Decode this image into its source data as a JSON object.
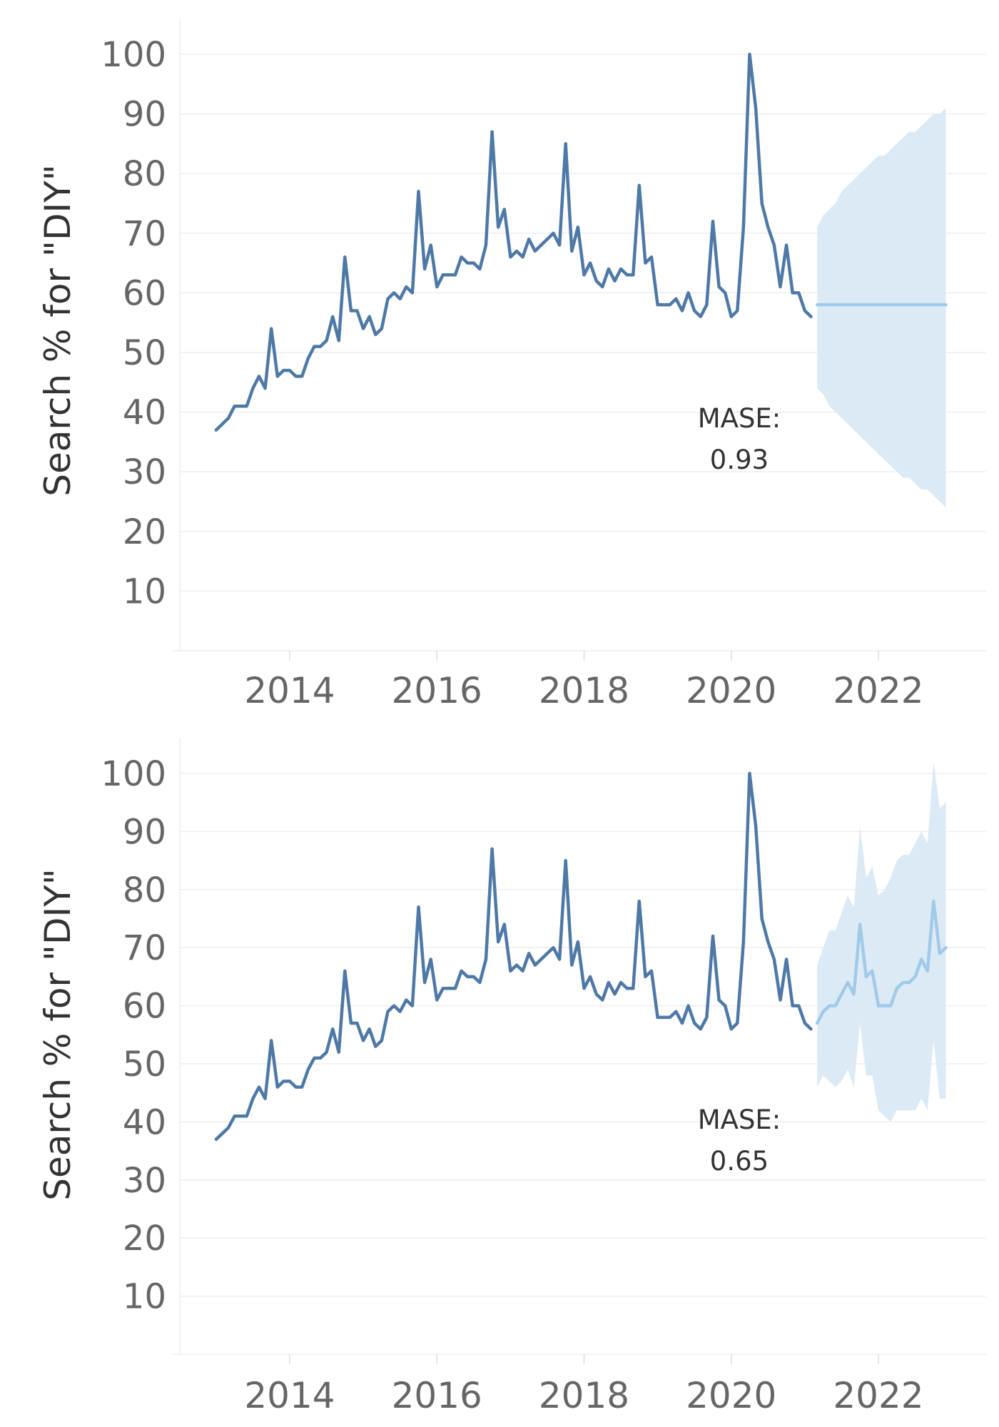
{
  "colors": {
    "history": "#4e79a7",
    "forecast": "#a0cbe8",
    "band": "#dceaf5",
    "grid": "#eeeeee",
    "tick_text": "#666666",
    "label_text": "#333333"
  },
  "history_values": [
    37,
    38,
    39,
    41,
    41,
    41,
    44,
    46,
    44,
    54,
    46,
    47,
    47,
    46,
    46,
    49,
    51,
    51,
    52,
    56,
    52,
    66,
    57,
    57,
    54,
    56,
    53,
    54,
    59,
    60,
    59,
    61,
    60,
    77,
    64,
    68,
    61,
    63,
    63,
    63,
    66,
    65,
    65,
    64,
    68,
    87,
    71,
    74,
    66,
    67,
    66,
    69,
    67,
    68,
    69,
    70,
    68,
    85,
    67,
    71,
    63,
    65,
    62,
    61,
    64,
    62,
    64,
    63,
    63,
    78,
    65,
    66,
    58,
    58,
    58,
    59,
    57,
    60,
    57,
    56,
    58,
    72,
    61,
    60,
    56,
    57,
    71,
    100,
    91,
    75,
    71,
    68,
    61,
    68,
    60,
    60,
    57,
    56
  ],
  "chart_data": [
    {
      "type": "line",
      "title": "",
      "xlabel": "",
      "ylabel": "Search % for \"DIY\"",
      "ylim": [
        0,
        100
      ],
      "xlim": [
        "2012-01",
        "2023-01"
      ],
      "yticks": [
        10,
        20,
        30,
        40,
        50,
        60,
        70,
        80,
        90,
        100
      ],
      "xticks": [
        "2014",
        "2016",
        "2018",
        "2020",
        "2022"
      ],
      "grid": "horizontal",
      "history_start": "2013-01",
      "forecast_start": "2021-03",
      "forecast_values": [
        58,
        58,
        58,
        58,
        58,
        58,
        58,
        58,
        58,
        58,
        58,
        58,
        58,
        58,
        58,
        58,
        58,
        58,
        58,
        58,
        58,
        58
      ],
      "forecast_upper": [
        71,
        73,
        74,
        75,
        77,
        78,
        79,
        80,
        81,
        82,
        83,
        83,
        84,
        85,
        86,
        87,
        87,
        88,
        89,
        90,
        90,
        91
      ],
      "forecast_lower": [
        44,
        43,
        41,
        40,
        39,
        38,
        37,
        36,
        35,
        34,
        33,
        32,
        31,
        30,
        29,
        29,
        28,
        27,
        27,
        26,
        25,
        24
      ],
      "annotation": {
        "label": "MASE:",
        "value": "0.93"
      }
    },
    {
      "type": "line",
      "title": "",
      "xlabel": "",
      "ylabel": "Search % for \"DIY\"",
      "ylim": [
        0,
        100
      ],
      "xlim": [
        "2012-01",
        "2023-01"
      ],
      "yticks": [
        10,
        20,
        30,
        40,
        50,
        60,
        70,
        80,
        90,
        100
      ],
      "xticks": [
        "2014",
        "2016",
        "2018",
        "2020",
        "2022"
      ],
      "grid": "horizontal",
      "history_start": "2013-01",
      "forecast_start": "2021-03",
      "forecast_values": [
        57,
        59,
        60,
        60,
        62,
        64,
        62,
        74,
        65,
        66,
        60,
        60,
        60,
        63,
        64,
        64,
        65,
        68,
        66,
        78,
        69,
        70
      ],
      "forecast_upper": [
        67,
        70,
        73,
        73,
        76,
        79,
        77,
        91,
        82,
        84,
        79,
        80,
        82,
        85,
        86,
        86,
        88,
        90,
        88,
        102,
        94,
        95
      ],
      "forecast_lower": [
        46,
        48,
        47,
        46,
        47,
        49,
        46,
        57,
        48,
        48,
        42,
        41,
        40,
        42,
        42,
        42,
        42,
        44,
        42,
        54,
        44,
        44
      ],
      "annotation": {
        "label": "MASE:",
        "value": "0.65"
      }
    }
  ]
}
